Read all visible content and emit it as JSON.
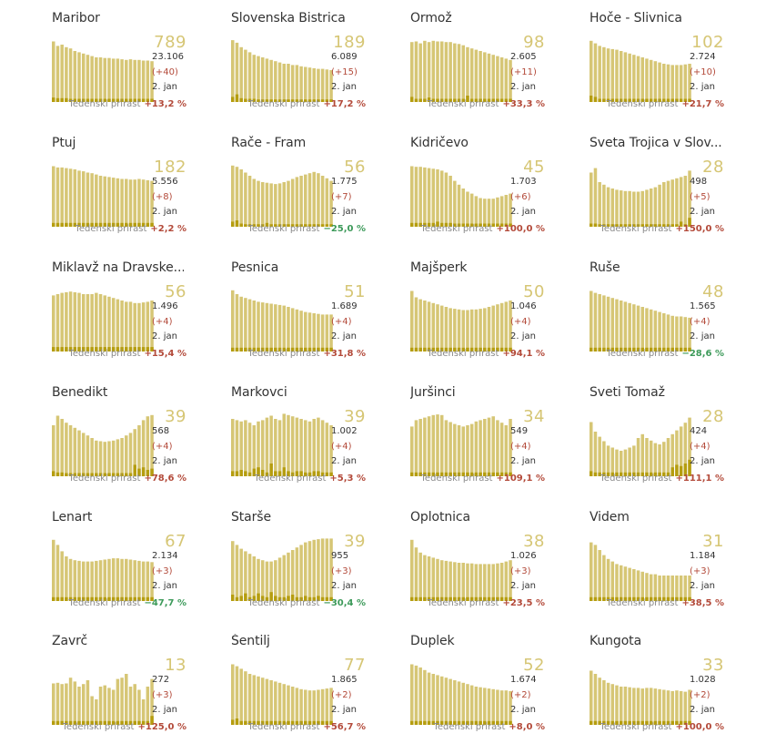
{
  "labels": {
    "weekly_label": "Tedenski prirast",
    "date": "2. jan"
  },
  "colors": {
    "bar_light": "#d6c675",
    "bar_dark": "#b59d0f",
    "big_number": "#d6c675",
    "increase": "#b34a3a",
    "decrease": "#3d9a5a"
  },
  "chart_data": [
    {
      "type": "bar",
      "name": "Maribor",
      "active": 789,
      "total": "23.106",
      "delta": "(+40)",
      "weekly": "+13,2 %",
      "trend": "up",
      "values": [
        95,
        88,
        90,
        86,
        84,
        80,
        78,
        76,
        74,
        72,
        70,
        70,
        69,
        69,
        68,
        68,
        67,
        66,
        67,
        66,
        66,
        65,
        65,
        64
      ],
      "new": [
        7,
        6,
        6,
        6,
        5,
        5,
        5,
        5,
        5,
        5,
        5,
        5,
        5,
        5,
        5,
        5,
        5,
        5,
        5,
        5,
        5,
        5,
        5,
        5
      ]
    },
    {
      "type": "bar",
      "name": "Slovenska Bistrica",
      "active": 189,
      "total": "6.089",
      "delta": "(+15)",
      "weekly": "+17,2 %",
      "trend": "up",
      "values": [
        97,
        93,
        86,
        82,
        78,
        74,
        72,
        70,
        68,
        66,
        64,
        62,
        60,
        60,
        58,
        58,
        56,
        55,
        54,
        53,
        52,
        52,
        51,
        50
      ],
      "new": [
        8,
        12,
        6,
        5,
        5,
        5,
        4,
        4,
        4,
        4,
        4,
        4,
        4,
        4,
        4,
        4,
        4,
        4,
        4,
        4,
        4,
        4,
        4,
        4
      ]
    },
    {
      "type": "bar",
      "name": "Ormož",
      "active": 98,
      "total": "2.605",
      "delta": "(+11)",
      "weekly": "+33,3 %",
      "trend": "up",
      "values": [
        94,
        95,
        92,
        96,
        94,
        96,
        95,
        95,
        94,
        94,
        92,
        91,
        89,
        86,
        84,
        82,
        80,
        78,
        76,
        74,
        72,
        70,
        68,
        66
      ],
      "new": [
        8,
        5,
        5,
        5,
        7,
        5,
        5,
        5,
        5,
        5,
        5,
        5,
        5,
        10,
        5,
        5,
        5,
        5,
        5,
        5,
        5,
        5,
        5,
        5
      ]
    },
    {
      "type": "bar",
      "name": "Hoče - Slivnica",
      "active": 102,
      "total": "2.724",
      "delta": "(+10)",
      "weekly": "+21,7 %",
      "trend": "up",
      "values": [
        96,
        92,
        88,
        86,
        84,
        83,
        82,
        80,
        78,
        76,
        74,
        72,
        70,
        68,
        66,
        64,
        62,
        60,
        59,
        58,
        58,
        58,
        59,
        60
      ],
      "new": [
        10,
        8,
        5,
        5,
        5,
        5,
        5,
        5,
        5,
        5,
        5,
        5,
        5,
        5,
        5,
        5,
        5,
        5,
        5,
        5,
        5,
        5,
        5,
        5
      ]
    },
    {
      "type": "bar",
      "name": "Ptuj",
      "active": 182,
      "total": "5.556",
      "delta": "(+8)",
      "weekly": "+2,2 %",
      "trend": "up",
      "values": [
        95,
        93,
        93,
        92,
        91,
        90,
        88,
        87,
        85,
        84,
        82,
        80,
        79,
        78,
        77,
        76,
        75,
        75,
        74,
        74,
        75,
        74,
        73,
        72
      ],
      "new": [
        6,
        6,
        6,
        6,
        6,
        6,
        6,
        6,
        6,
        6,
        6,
        6,
        6,
        6,
        6,
        6,
        6,
        6,
        6,
        6,
        6,
        6,
        6,
        6
      ]
    },
    {
      "type": "bar",
      "name": "Rače - Fram",
      "active": 56,
      "total": "1.775",
      "delta": "(+7)",
      "weekly": "−25,0 %",
      "trend": "down",
      "values": [
        96,
        94,
        90,
        85,
        80,
        75,
        72,
        70,
        69,
        68,
        67,
        68,
        70,
        72,
        75,
        78,
        80,
        82,
        84,
        86,
        84,
        80,
        76,
        72
      ],
      "new": [
        8,
        10,
        5,
        4,
        4,
        4,
        4,
        4,
        6,
        4,
        4,
        4,
        4,
        4,
        4,
        4,
        4,
        4,
        4,
        4,
        4,
        4,
        4,
        4
      ]
    },
    {
      "type": "bar",
      "name": "Kidričevo",
      "active": 45,
      "total": "1.703",
      "delta": "(+6)",
      "weekly": "+100,0 %",
      "trend": "up",
      "values": [
        95,
        94,
        94,
        93,
        92,
        91,
        90,
        88,
        85,
        80,
        72,
        66,
        60,
        55,
        52,
        48,
        45,
        44,
        44,
        44,
        46,
        48,
        50,
        52
      ],
      "new": [
        6,
        6,
        6,
        6,
        6,
        6,
        8,
        6,
        6,
        6,
        5,
        5,
        5,
        5,
        5,
        5,
        5,
        5,
        5,
        5,
        5,
        5,
        5,
        5
      ]
    },
    {
      "type": "bar",
      "name": "Sveta Trojica v Slov....",
      "active": 28,
      "total": "498",
      "delta": "(+5)",
      "weekly": "+150,0 %",
      "trend": "up",
      "values": [
        85,
        92,
        70,
        66,
        62,
        60,
        58,
        57,
        56,
        56,
        55,
        55,
        56,
        58,
        60,
        62,
        66,
        70,
        72,
        74,
        76,
        78,
        80,
        88
      ],
      "new": [
        5,
        5,
        4,
        4,
        4,
        4,
        4,
        4,
        4,
        4,
        4,
        4,
        4,
        4,
        4,
        4,
        4,
        4,
        4,
        4,
        4,
        8,
        4,
        14
      ]
    },
    {
      "type": "bar",
      "name": "Miklavž na Dravske...",
      "active": 56,
      "total": "1.496",
      "delta": "(+4)",
      "weekly": "+15,4 %",
      "trend": "up",
      "values": [
        88,
        90,
        92,
        93,
        94,
        93,
        92,
        90,
        90,
        90,
        92,
        90,
        88,
        86,
        84,
        82,
        80,
        78,
        78,
        76,
        76,
        77,
        78,
        80
      ],
      "new": [
        7,
        7,
        7,
        7,
        7,
        7,
        7,
        7,
        7,
        7,
        7,
        7,
        7,
        7,
        7,
        7,
        7,
        7,
        7,
        7,
        7,
        7,
        7,
        7
      ]
    },
    {
      "type": "bar",
      "name": "Pesnica",
      "active": 51,
      "total": "1.689",
      "delta": "(+4)",
      "weekly": "+31,8 %",
      "trend": "up",
      "values": [
        96,
        90,
        86,
        84,
        82,
        80,
        78,
        77,
        76,
        75,
        74,
        73,
        72,
        70,
        68,
        66,
        64,
        62,
        61,
        60,
        59,
        58,
        58,
        58
      ],
      "new": [
        6,
        6,
        6,
        6,
        6,
        6,
        6,
        6,
        6,
        6,
        6,
        6,
        6,
        6,
        6,
        6,
        6,
        6,
        6,
        6,
        6,
        6,
        6,
        6
      ]
    },
    {
      "type": "bar",
      "name": "Majšperk",
      "active": 50,
      "total": "1.046",
      "delta": "(+4)",
      "weekly": "+94,1 %",
      "trend": "up",
      "values": [
        95,
        85,
        82,
        80,
        78,
        76,
        74,
        72,
        70,
        68,
        67,
        66,
        65,
        65,
        66,
        66,
        67,
        68,
        70,
        72,
        74,
        76,
        78,
        80
      ],
      "new": [
        6,
        6,
        6,
        6,
        6,
        6,
        6,
        6,
        6,
        6,
        6,
        6,
        6,
        6,
        6,
        6,
        6,
        6,
        6,
        6,
        6,
        6,
        6,
        6
      ]
    },
    {
      "type": "bar",
      "name": "Ruše",
      "active": 48,
      "total": "1.565",
      "delta": "(+4)",
      "weekly": "−28,6 %",
      "trend": "down",
      "values": [
        95,
        92,
        90,
        88,
        86,
        84,
        82,
        80,
        78,
        76,
        74,
        72,
        70,
        68,
        66,
        64,
        62,
        60,
        58,
        56,
        55,
        55,
        54,
        53
      ],
      "new": [
        6,
        6,
        6,
        6,
        6,
        6,
        6,
        6,
        6,
        6,
        6,
        6,
        6,
        6,
        6,
        6,
        6,
        6,
        6,
        6,
        6,
        6,
        6,
        6
      ]
    },
    {
      "type": "bar",
      "name": "Benedikt",
      "active": 39,
      "total": "568",
      "delta": "(+4)",
      "weekly": "+78,6 %",
      "trend": "up",
      "values": [
        80,
        95,
        90,
        84,
        80,
        76,
        72,
        68,
        64,
        60,
        56,
        55,
        54,
        55,
        56,
        58,
        60,
        64,
        68,
        74,
        80,
        88,
        94,
        96
      ],
      "new": [
        8,
        6,
        6,
        5,
        5,
        5,
        5,
        5,
        5,
        5,
        5,
        5,
        5,
        5,
        5,
        5,
        5,
        5,
        5,
        18,
        12,
        14,
        10,
        12
      ]
    },
    {
      "type": "bar",
      "name": "Markovci",
      "active": 39,
      "total": "1.002",
      "delta": "(+4)",
      "weekly": "+5,3 %",
      "trend": "up",
      "values": [
        90,
        88,
        86,
        88,
        84,
        80,
        86,
        88,
        92,
        95,
        90,
        88,
        98,
        96,
        94,
        92,
        90,
        88,
        86,
        90,
        92,
        88,
        84,
        80
      ],
      "new": [
        8,
        8,
        10,
        8,
        6,
        12,
        14,
        10,
        6,
        20,
        8,
        8,
        14,
        8,
        6,
        8,
        8,
        6,
        6,
        8,
        8,
        6,
        6,
        6
      ]
    },
    {
      "type": "bar",
      "name": "Juršinci",
      "active": 34,
      "total": "549",
      "delta": "(+4)",
      "weekly": "+109,1 %",
      "trend": "up",
      "values": [
        78,
        88,
        90,
        92,
        94,
        96,
        97,
        96,
        88,
        85,
        82,
        80,
        78,
        80,
        82,
        86,
        88,
        90,
        92,
        94,
        88,
        84,
        80,
        90
      ],
      "new": [
        6,
        6,
        6,
        6,
        6,
        6,
        6,
        6,
        6,
        6,
        6,
        6,
        6,
        6,
        6,
        6,
        6,
        6,
        6,
        6,
        6,
        6,
        6,
        6
      ]
    },
    {
      "type": "bar",
      "name": "Sveti Tomaž",
      "active": 28,
      "total": "424",
      "delta": "(+4)",
      "weekly": "+111,1 %",
      "trend": "up",
      "values": [
        85,
        70,
        62,
        55,
        48,
        45,
        42,
        40,
        42,
        45,
        48,
        60,
        66,
        60,
        56,
        52,
        50,
        54,
        60,
        66,
        72,
        78,
        84,
        92
      ],
      "new": [
        8,
        6,
        6,
        6,
        6,
        6,
        6,
        6,
        6,
        6,
        6,
        6,
        6,
        6,
        6,
        6,
        6,
        6,
        6,
        14,
        18,
        16,
        20,
        26
      ]
    },
    {
      "type": "bar",
      "name": "Lenart",
      "active": 67,
      "total": "2.134",
      "delta": "(+3)",
      "weekly": "−47,7 %",
      "trend": "down",
      "values": [
        96,
        88,
        78,
        70,
        66,
        64,
        63,
        62,
        62,
        62,
        63,
        64,
        65,
        66,
        67,
        67,
        66,
        66,
        65,
        64,
        63,
        62,
        62,
        61
      ],
      "new": [
        6,
        6,
        6,
        6,
        6,
        6,
        6,
        6,
        6,
        6,
        6,
        6,
        6,
        6,
        6,
        6,
        6,
        6,
        6,
        6,
        6,
        6,
        6,
        6
      ]
    },
    {
      "type": "bar",
      "name": "Starše",
      "active": 39,
      "total": "955",
      "delta": "(+3)",
      "weekly": "−30,4 %",
      "trend": "down",
      "values": [
        94,
        88,
        82,
        78,
        74,
        70,
        66,
        64,
        62,
        62,
        64,
        68,
        72,
        76,
        80,
        84,
        88,
        92,
        94,
        96,
        97,
        98,
        98,
        98
      ],
      "new": [
        10,
        6,
        8,
        12,
        6,
        8,
        12,
        8,
        6,
        14,
        8,
        6,
        6,
        8,
        10,
        6,
        6,
        8,
        6,
        6,
        8,
        6,
        6,
        6
      ]
    },
    {
      "type": "bar",
      "name": "Oplotnica",
      "active": 38,
      "total": "1.026",
      "delta": "(+3)",
      "weekly": "+23,5 %",
      "trend": "up",
      "values": [
        96,
        84,
        76,
        72,
        70,
        68,
        66,
        64,
        63,
        62,
        61,
        60,
        60,
        59,
        59,
        58,
        58,
        58,
        58,
        58,
        59,
        60,
        62,
        64
      ],
      "new": [
        6,
        6,
        6,
        6,
        6,
        6,
        6,
        6,
        6,
        6,
        6,
        6,
        6,
        6,
        6,
        6,
        6,
        6,
        6,
        6,
        6,
        6,
        6,
        6
      ]
    },
    {
      "type": "bar",
      "name": "Videm",
      "active": 31,
      "total": "1.184",
      "delta": "(+3)",
      "weekly": "+38,5 %",
      "trend": "up",
      "values": [
        92,
        88,
        80,
        72,
        66,
        62,
        58,
        56,
        54,
        52,
        50,
        48,
        46,
        44,
        42,
        42,
        40,
        40,
        40,
        40,
        40,
        40,
        40,
        40
      ],
      "new": [
        6,
        6,
        6,
        6,
        6,
        6,
        6,
        6,
        6,
        6,
        6,
        6,
        6,
        6,
        6,
        6,
        6,
        6,
        6,
        6,
        6,
        6,
        6,
        6
      ]
    },
    {
      "type": "bar",
      "name": "Zavrč",
      "active": 13,
      "total": "272",
      "delta": "(+3)",
      "weekly": "+125,0 %",
      "trend": "up",
      "values": [
        65,
        66,
        64,
        65,
        74,
        68,
        60,
        64,
        70,
        45,
        40,
        60,
        62,
        58,
        55,
        72,
        74,
        80,
        60,
        64,
        55,
        40,
        60,
        72
      ],
      "new": [
        6,
        6,
        6,
        6,
        6,
        6,
        6,
        6,
        6,
        6,
        6,
        6,
        6,
        6,
        6,
        6,
        6,
        6,
        6,
        6,
        6,
        6,
        6,
        14
      ]
    },
    {
      "type": "bar",
      "name": "Šentilj",
      "active": 77,
      "total": "1.865",
      "delta": "(+2)",
      "weekly": "+56,7 %",
      "trend": "up",
      "values": [
        95,
        92,
        88,
        84,
        80,
        78,
        76,
        74,
        72,
        70,
        68,
        66,
        64,
        62,
        60,
        58,
        56,
        55,
        54,
        54,
        55,
        56,
        57,
        58
      ],
      "new": [
        8,
        10,
        6,
        6,
        6,
        6,
        6,
        6,
        6,
        6,
        6,
        6,
        6,
        6,
        6,
        6,
        6,
        6,
        6,
        6,
        6,
        6,
        6,
        6
      ]
    },
    {
      "type": "bar",
      "name": "Duplek",
      "active": 52,
      "total": "1.674",
      "delta": "(+2)",
      "weekly": "+8,0 %",
      "trend": "up",
      "values": [
        95,
        93,
        90,
        86,
        82,
        80,
        78,
        76,
        74,
        72,
        70,
        68,
        66,
        64,
        62,
        60,
        59,
        58,
        57,
        56,
        55,
        54,
        54,
        53
      ],
      "new": [
        6,
        6,
        6,
        6,
        6,
        6,
        6,
        6,
        6,
        6,
        6,
        6,
        6,
        6,
        6,
        6,
        6,
        6,
        6,
        6,
        6,
        6,
        6,
        6
      ]
    },
    {
      "type": "bar",
      "name": "Kungota",
      "active": 33,
      "total": "1.028",
      "delta": "(+2)",
      "weekly": "+100,0 %",
      "trend": "up",
      "values": [
        85,
        80,
        74,
        70,
        66,
        64,
        62,
        60,
        60,
        59,
        58,
        58,
        57,
        58,
        58,
        57,
        56,
        55,
        54,
        53,
        54,
        53,
        52,
        55
      ],
      "new": [
        6,
        6,
        6,
        6,
        6,
        6,
        6,
        6,
        6,
        6,
        6,
        6,
        6,
        6,
        6,
        6,
        6,
        6,
        6,
        6,
        6,
        6,
        6,
        6
      ]
    }
  ]
}
